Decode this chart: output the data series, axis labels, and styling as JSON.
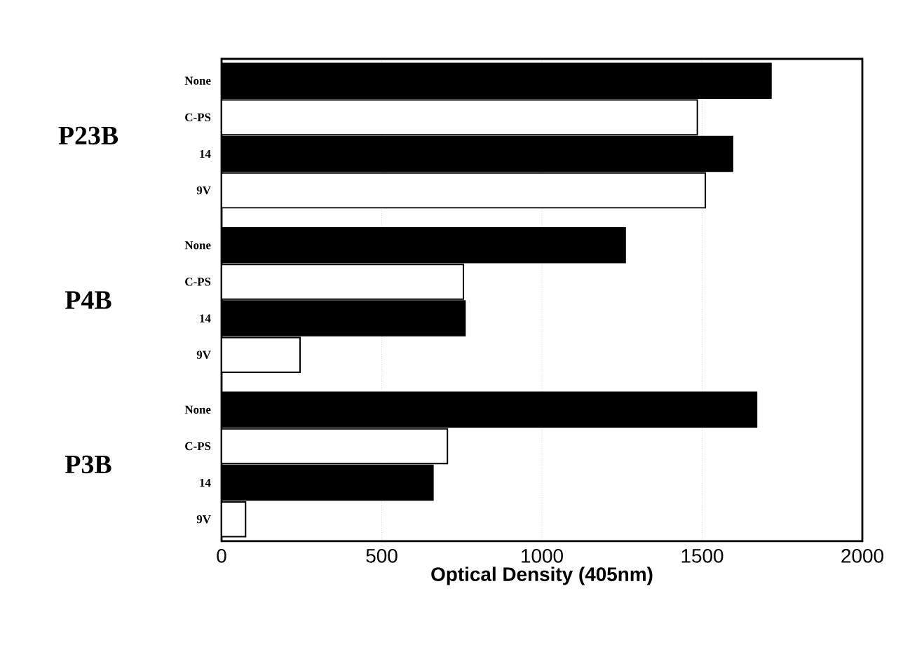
{
  "chart_data": {
    "type": "bar",
    "orientation": "horizontal",
    "categories": [
      "None",
      "C-PS",
      "14",
      "9V",
      "None",
      "C-PS",
      "14",
      "9V",
      "None",
      "C-PS",
      "14",
      "9V"
    ],
    "values": [
      1715,
      1485,
      1595,
      1510,
      1260,
      755,
      760,
      245,
      1670,
      705,
      660,
      75
    ],
    "colors": [
      "#000000",
      "#ffffff",
      "#000000",
      "#ffffff",
      "#000000",
      "#ffffff",
      "#000000",
      "#ffffff",
      "#000000",
      "#ffffff",
      "#000000",
      "#ffffff"
    ],
    "xlabel": "Optical Density (405nm)",
    "xlim": [
      0,
      2000
    ],
    "xticks": [
      0,
      500,
      1000,
      1500,
      2000
    ],
    "grid": "x",
    "annotations": [
      "P23B",
      "P4B",
      "P3B"
    ]
  }
}
